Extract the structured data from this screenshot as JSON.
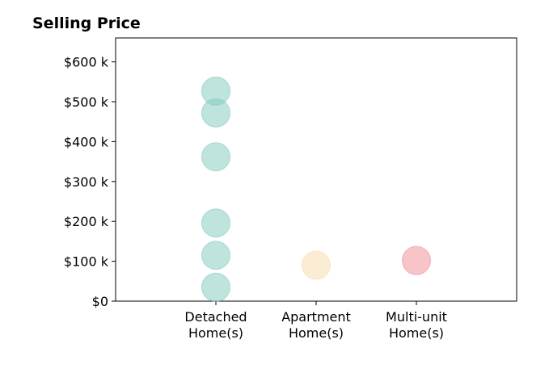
{
  "chart_data": {
    "type": "scatter",
    "title": "Selling Price",
    "xlabel": "",
    "ylabel": "",
    "categories": [
      [
        "Detached",
        "Home(s)"
      ],
      [
        "Apartment",
        "Home(s)"
      ],
      [
        "Multi-unit",
        "Home(s)"
      ]
    ],
    "ylim": [
      0,
      660000
    ],
    "y_ticks": [
      {
        "value": 0,
        "label": "$0"
      },
      {
        "value": 100000,
        "label": "$100 k"
      },
      {
        "value": 200000,
        "label": "$200 k"
      },
      {
        "value": 300000,
        "label": "$300 k"
      },
      {
        "value": 400000,
        "label": "$400 k"
      },
      {
        "value": 500000,
        "label": "$500 k"
      },
      {
        "value": 600000,
        "label": "$600 k"
      }
    ],
    "series": [
      {
        "category_index": 0,
        "color": "#7fc9bd",
        "values": [
          527000,
          472000,
          362000,
          196000,
          115000,
          35000
        ]
      },
      {
        "category_index": 1,
        "color": "#f6dca8",
        "values": [
          90000
        ]
      },
      {
        "category_index": 2,
        "color": "#f08a92",
        "values": [
          102000
        ]
      }
    ],
    "grid": false,
    "legend": "none"
  }
}
